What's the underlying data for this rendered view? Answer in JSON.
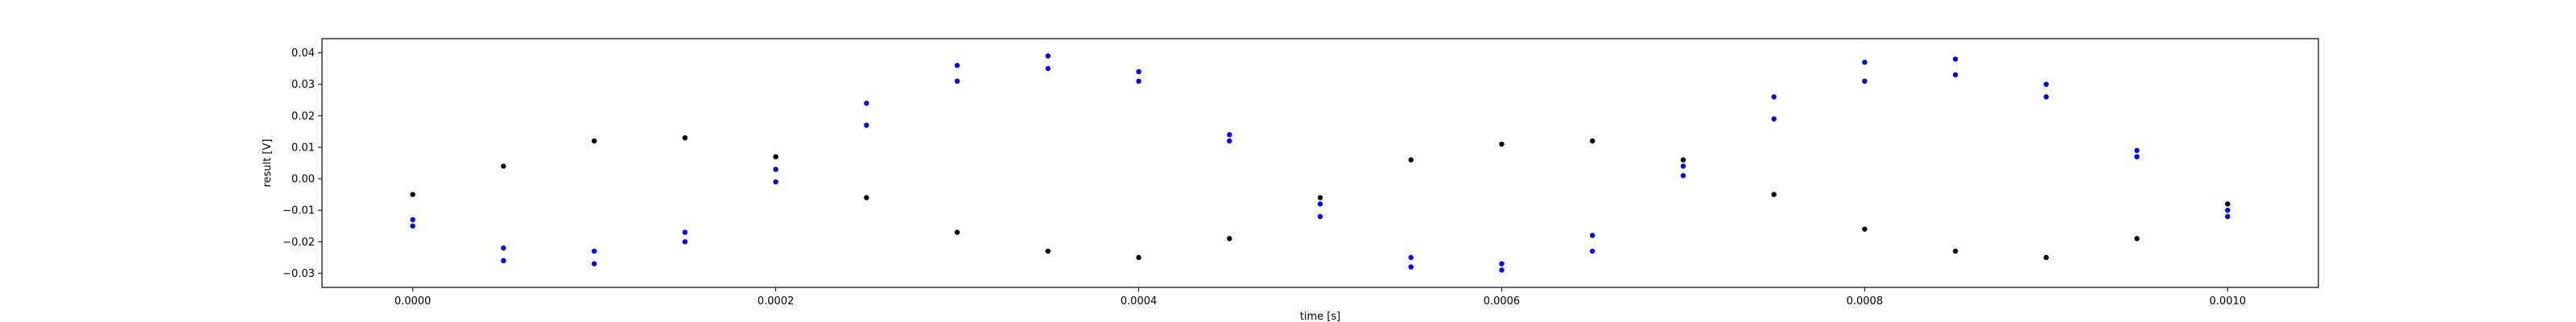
{
  "chart_data": {
    "type": "scatter",
    "title": "",
    "xlabel": "time [s]",
    "ylabel": "result [V]",
    "xlim": [
      -5e-05,
      0.00105
    ],
    "ylim": [
      -0.0345,
      0.0445
    ],
    "xticks": [
      0.0,
      0.0002,
      0.0004,
      0.0006,
      0.0008,
      0.001
    ],
    "xtick_labels": [
      "0.0000",
      "0.0002",
      "0.0004",
      "0.0006",
      "0.0008",
      "0.0010"
    ],
    "yticks": [
      -0.03,
      -0.02,
      -0.01,
      0.0,
      0.01,
      0.02,
      0.03,
      0.04
    ],
    "ytick_labels": [
      "−0.03",
      "−0.02",
      "−0.01",
      "0.00",
      "0.01",
      "0.02",
      "0.03",
      "0.04"
    ],
    "grid": false,
    "series": [
      {
        "color": "#000000",
        "x": [
          0.0,
          5e-05,
          0.0001,
          0.00015,
          0.0002,
          0.00025,
          0.0003,
          0.00035,
          0.0004,
          0.00045,
          0.0005,
          0.00055,
          0.0006,
          0.00065,
          0.0007,
          0.00075,
          0.0008,
          0.00085,
          0.0009,
          0.00095,
          0.001
        ],
        "y": [
          -0.005,
          0.004,
          0.012,
          0.013,
          0.007,
          -0.006,
          -0.017,
          -0.023,
          -0.025,
          -0.019,
          -0.006,
          0.006,
          0.011,
          0.012,
          0.006,
          -0.005,
          -0.016,
          -0.023,
          -0.025,
          -0.019,
          -0.008
        ]
      },
      {
        "color": "#0000ff",
        "x": [
          0.0,
          5e-05,
          0.0001,
          0.00015,
          0.0002,
          0.00025,
          0.0003,
          0.00035,
          0.0004,
          0.00045,
          0.0005,
          0.00055,
          0.0006,
          0.00065,
          0.0007,
          0.00075,
          0.0008,
          0.00085,
          0.0009,
          0.00095,
          0.001
        ],
        "y": [
          -0.013,
          -0.022,
          -0.023,
          -0.017,
          -0.001,
          0.017,
          0.031,
          0.035,
          0.031,
          0.012,
          -0.008,
          -0.025,
          -0.027,
          -0.018,
          0.001,
          0.019,
          0.031,
          0.033,
          0.026,
          0.007,
          -0.01
        ]
      },
      {
        "color": "#0000ff",
        "x": [
          0.0,
          5e-05,
          0.0001,
          0.00015,
          0.0002,
          0.00025,
          0.0003,
          0.00035,
          0.0004,
          0.00045,
          0.0005,
          0.00055,
          0.0006,
          0.00065,
          0.0007,
          0.00075,
          0.0008,
          0.00085,
          0.0009,
          0.00095,
          0.001
        ],
        "y": [
          -0.015,
          -0.026,
          -0.027,
          -0.02,
          0.003,
          0.024,
          0.036,
          0.039,
          0.034,
          0.014,
          -0.012,
          -0.028,
          -0.029,
          -0.023,
          0.004,
          0.026,
          0.037,
          0.038,
          0.03,
          0.009,
          -0.012
        ]
      }
    ]
  }
}
